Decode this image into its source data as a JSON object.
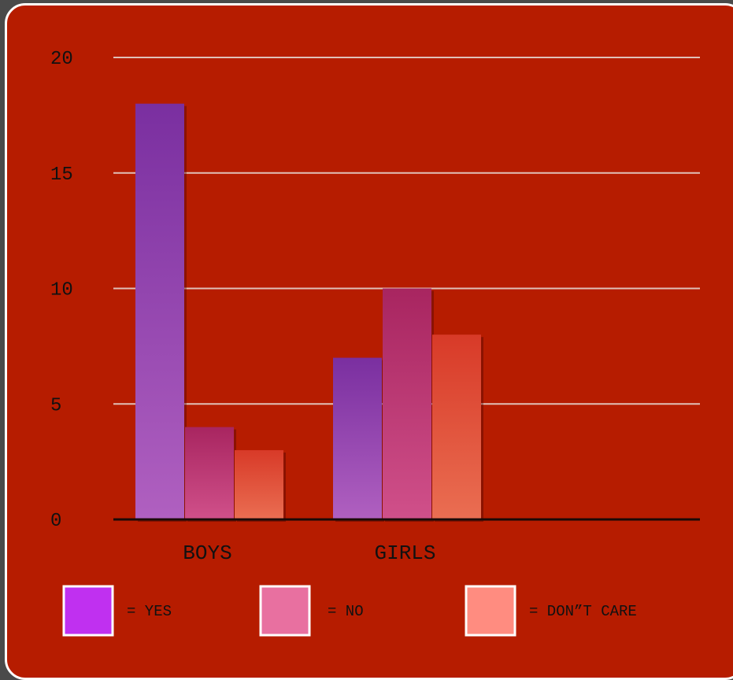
{
  "chart_data": {
    "type": "bar",
    "categories": [
      "BOYS",
      "GIRLS"
    ],
    "series": [
      {
        "name": "YES",
        "values": [
          18,
          7
        ],
        "bar_top": "#7a2fa0",
        "bar_bottom": "#b060c0",
        "swatch": "#c030f0"
      },
      {
        "name": "NO",
        "values": [
          4,
          10
        ],
        "bar_top": "#a82560",
        "bar_bottom": "#d0508a",
        "swatch": "#e870a0"
      },
      {
        "name": "DON”T CARE",
        "values": [
          3,
          8
        ],
        "bar_top": "#d83a28",
        "bar_bottom": "#ea6e52",
        "swatch": "#ff8c80"
      }
    ],
    "ylim": [
      0,
      20
    ],
    "yticks": [
      0,
      5,
      10,
      15,
      20
    ],
    "grid": true,
    "legend_position": "bottom",
    "legend_entries": [
      {
        "swatch": "#c030f0",
        "text": "= YES"
      },
      {
        "swatch": "#e870a0",
        "text": "= NO"
      },
      {
        "swatch": "#ff8c80",
        "text": "= DON”T CARE"
      }
    ],
    "background": "#b61c00",
    "gridline_color": "#e0c0b8",
    "axis_color": "#1a0a08"
  }
}
